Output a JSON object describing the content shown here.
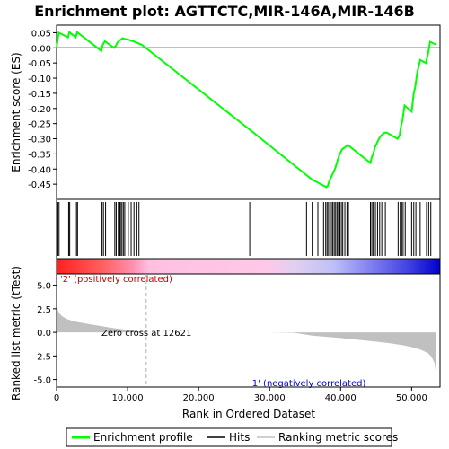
{
  "chart_data": {
    "type": "line",
    "title": "Enrichment plot: AGTTCTC,MIR-146A,MIR-146B",
    "enrichment_panel": {
      "ylabel": "Enrichment score (ES)",
      "ylim": [
        -0.5,
        0.075
      ],
      "yticks": [
        0.05,
        0.0,
        -0.05,
        -0.1,
        -0.15,
        -0.2,
        -0.25,
        -0.3,
        -0.35,
        -0.4,
        -0.45
      ],
      "ytick_labels": [
        "0.05",
        "0.00",
        "-0.05",
        "-0.10",
        "-0.15",
        "-0.20",
        "-0.25",
        "-0.30",
        "-0.35",
        "-0.40",
        "-0.45"
      ],
      "series": [
        {
          "name": "Enrichment profile",
          "color": "#00ff00",
          "x": [
            0,
            300,
            1600,
            1800,
            2700,
            2900,
            6300,
            6500,
            6800,
            7000,
            8100,
            8300,
            8600,
            8900,
            9100,
            9300,
            9500,
            10000,
            10400,
            10800,
            11200,
            11500,
            12000,
            27200,
            35200,
            36000,
            36800,
            37600,
            38000,
            38200,
            38400,
            38600,
            38800,
            39000,
            39200,
            39400,
            39600,
            39800,
            40000,
            40200,
            40500,
            40800,
            41000,
            44200,
            44400,
            44600,
            44800,
            45100,
            45400,
            45700,
            46200,
            46500,
            48000,
            48300,
            48500,
            48700,
            49000,
            50000,
            50300,
            50500,
            50800,
            51200,
            52000,
            52300,
            52600,
            53500
          ],
          "y": [
            0.0,
            0.05,
            0.035,
            0.052,
            0.035,
            0.052,
            -0.01,
            0.01,
            0.022,
            0.018,
            0.0,
            0.005,
            0.018,
            0.025,
            0.028,
            0.032,
            0.03,
            0.028,
            0.025,
            0.022,
            0.018,
            0.015,
            0.01,
            -0.27,
            -0.42,
            -0.435,
            -0.445,
            -0.455,
            -0.46,
            -0.455,
            -0.44,
            -0.43,
            -0.42,
            -0.41,
            -0.4,
            -0.385,
            -0.37,
            -0.355,
            -0.345,
            -0.335,
            -0.33,
            -0.325,
            -0.32,
            -0.38,
            -0.36,
            -0.35,
            -0.33,
            -0.315,
            -0.3,
            -0.29,
            -0.28,
            -0.28,
            -0.3,
            -0.29,
            -0.26,
            -0.24,
            -0.19,
            -0.21,
            -0.15,
            -0.13,
            -0.08,
            -0.04,
            -0.05,
            -0.02,
            0.02,
            0.01
          ]
        }
      ]
    },
    "hits": [
      180,
      350,
      1700,
      1850,
      2800,
      2950,
      6400,
      6600,
      6900,
      8200,
      8400,
      8700,
      8900,
      9000,
      9200,
      9400,
      9600,
      10100,
      10500,
      10900,
      11300,
      11600,
      27200,
      35200,
      36000,
      36800,
      37600,
      37900,
      38100,
      38300,
      38500,
      38700,
      38900,
      39100,
      39300,
      39500,
      39700,
      39900,
      40100,
      40300,
      40600,
      40900,
      41100,
      44200,
      44400,
      44600,
      44900,
      45200,
      45500,
      45800,
      46300,
      48100,
      48400,
      48600,
      48800,
      49100,
      50000,
      50300,
      50600,
      50900,
      51200,
      52100,
      52400,
      52700
    ],
    "ranked_panel": {
      "xlabel": "Rank in Ordered Dataset",
      "ylabel": "Ranked list metric (tTest)",
      "ylim": [
        -5.8,
        6.2
      ],
      "yticks": [
        5.0,
        2.5,
        0.0,
        -2.5,
        -5.0
      ],
      "ytick_labels": [
        "5.0",
        "2.5",
        "0.0",
        "-2.5",
        "-5.0"
      ],
      "xlim": [
        0,
        54000
      ],
      "xticks": [
        0,
        10000,
        20000,
        30000,
        40000,
        50000
      ],
      "xtick_labels": [
        "0",
        "10,000",
        "20,000",
        "30,000",
        "40,000",
        "50,000"
      ],
      "zero_cross": 12621,
      "zero_cross_label": "Zero cross at 12621",
      "pos_label": "'2' (positively correlated)",
      "neg_label": "'1' (negatively correlated)",
      "pos_color": "#cc0000",
      "neg_color": "#0000cc",
      "metric_profile": {
        "x": [
          0,
          150,
          400,
          800,
          1500,
          2500,
          4000,
          6000,
          8000,
          10000,
          12621,
          20000,
          30000,
          33500,
          36000,
          40000,
          44000,
          47000,
          49000,
          50500,
          51500,
          52300,
          52800,
          53200,
          53400,
          53500
        ],
        "y": [
          3.0,
          2.4,
          2.0,
          1.7,
          1.4,
          1.15,
          0.95,
          0.7,
          0.45,
          0.25,
          0.0,
          0.0,
          0.0,
          -0.05,
          -0.35,
          -0.6,
          -0.9,
          -1.15,
          -1.4,
          -1.65,
          -1.9,
          -2.2,
          -2.6,
          -3.2,
          -4.2,
          -5.6
        ]
      }
    },
    "legend": {
      "items": [
        {
          "label": "Enrichment profile",
          "color": "#00ff00"
        },
        {
          "label": "Hits",
          "color": "#000000"
        },
        {
          "label": "Ranking metric scores",
          "color": "#c0c0c0"
        }
      ]
    },
    "total_ranks": 53500
  }
}
